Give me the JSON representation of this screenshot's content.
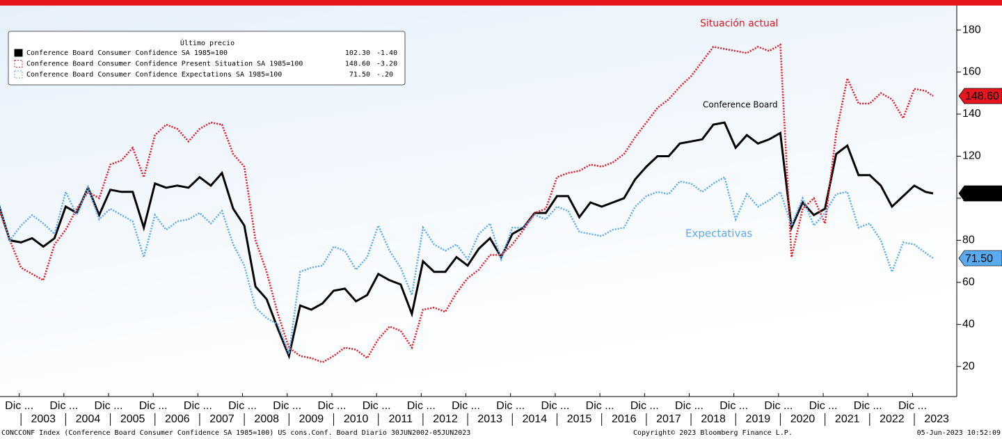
{
  "chart_data": {
    "type": "line",
    "annotations": [
      "Situación actual",
      "Conference Board",
      "Expectativas"
    ],
    "legend_title": "Último precio",
    "x": [
      2002.5,
      2002.75,
      2003,
      2003.25,
      2003.5,
      2003.75,
      2004,
      2004.25,
      2004.5,
      2004.75,
      2005,
      2005.25,
      2005.5,
      2005.75,
      2006,
      2006.25,
      2006.5,
      2006.75,
      2007,
      2007.25,
      2007.5,
      2007.75,
      2008,
      2008.25,
      2008.5,
      2008.75,
      2009,
      2009.25,
      2009.5,
      2009.75,
      2010,
      2010.25,
      2010.5,
      2010.75,
      2011,
      2011.25,
      2011.5,
      2011.75,
      2012,
      2012.25,
      2012.5,
      2012.75,
      2013,
      2013.25,
      2013.5,
      2013.75,
      2014,
      2014.25,
      2014.5,
      2014.75,
      2015,
      2015.25,
      2015.5,
      2015.75,
      2016,
      2016.25,
      2016.5,
      2016.75,
      2017,
      2017.25,
      2017.5,
      2017.75,
      2018,
      2018.25,
      2018.5,
      2018.75,
      2019,
      2019.25,
      2019.5,
      2019.75,
      2020,
      2020.25,
      2020.5,
      2020.75,
      2021,
      2021.25,
      2021.5,
      2021.75,
      2022,
      2022.25,
      2022.5,
      2022.75,
      2023,
      2023.25,
      2023.42
    ],
    "series": [
      {
        "name": "Conference Board Consumer Confidence SA 1985=100",
        "last": "102.30",
        "change": "-1.40",
        "color": "#000000",
        "style": "solid",
        "values": [
          97,
          80,
          79,
          81,
          77,
          81,
          96,
          93,
          105,
          92,
          104,
          103,
          103,
          86,
          107,
          105,
          106,
          105,
          110,
          106,
          112,
          95,
          87,
          58,
          52,
          38,
          25,
          49,
          47,
          50,
          56,
          57,
          51,
          54,
          64,
          61,
          59,
          45,
          70,
          65,
          65,
          72,
          68,
          76,
          81,
          72,
          83,
          86,
          93,
          93,
          101,
          101,
          91,
          98,
          96,
          98,
          100,
          109,
          115,
          120,
          120,
          126,
          127,
          128,
          135,
          136,
          124,
          130,
          126,
          128,
          131,
          86,
          98,
          92,
          95,
          121,
          125,
          111,
          111,
          106,
          96,
          101,
          106,
          103,
          102.3
        ]
      },
      {
        "name": "Conference Board Consumer Confidence Present Situation SA 1985=100",
        "last": "148.60",
        "change": "-3.20",
        "color": "#e8141e",
        "style": "dotted",
        "values": [
          95,
          80,
          67,
          64,
          61,
          78,
          85,
          95,
          103,
          100,
          116,
          118,
          124,
          110,
          130,
          135,
          133,
          127,
          133,
          136,
          135,
          121,
          115,
          80,
          65,
          45,
          29,
          25,
          24,
          22,
          25,
          29,
          28,
          24,
          33,
          39,
          37,
          29,
          47,
          48,
          46,
          55,
          62,
          66,
          73,
          73,
          78,
          85,
          93,
          95,
          110,
          112,
          113,
          116,
          115,
          117,
          121,
          129,
          136,
          143,
          147,
          153,
          158,
          165,
          172,
          171,
          170,
          169,
          172,
          170,
          173,
          72,
          95,
          100,
          88,
          131,
          157,
          145,
          145,
          150,
          147,
          138,
          152,
          151,
          148.6
        ]
      },
      {
        "name": "Conference Board Consumer Confidence Expectations SA 1985=100",
        "last": "71.50",
        "change": "-.20",
        "color": "#5aaaf0",
        "style": "dotted",
        "values": [
          98,
          80,
          87,
          92,
          88,
          83,
          103,
          92,
          105,
          90,
          95,
          92,
          89,
          72,
          92,
          85,
          89,
          90,
          93,
          88,
          94,
          78,
          68,
          48,
          43,
          40,
          26,
          65,
          67,
          68,
          77,
          75,
          66,
          72,
          87,
          75,
          67,
          54,
          86,
          78,
          75,
          78,
          71,
          83,
          88,
          71,
          86,
          86,
          92,
          90,
          96,
          94,
          84,
          83,
          82,
          85,
          86,
          96,
          101,
          103,
          102,
          108,
          107,
          103,
          107,
          110,
          90,
          102,
          96,
          99,
          103,
          87,
          100,
          87,
          93,
          102,
          103,
          86,
          88,
          80,
          65,
          79,
          78,
          74,
          71.5
        ]
      }
    ],
    "xlim": [
      2002.53,
      2023.95
    ],
    "xticks": [
      {
        "value": 2003.5,
        "label": "2003"
      },
      {
        "value": 2004.5,
        "label": "2004"
      },
      {
        "value": 2005.5,
        "label": "2005"
      },
      {
        "value": 2006.5,
        "label": "2006"
      },
      {
        "value": 2007.5,
        "label": "2007"
      },
      {
        "value": 2008.5,
        "label": "2008"
      },
      {
        "value": 2009.5,
        "label": "2009"
      },
      {
        "value": 2010.5,
        "label": "2010"
      },
      {
        "value": 2011.5,
        "label": "2011"
      },
      {
        "value": 2012.5,
        "label": "2012"
      },
      {
        "value": 2013.5,
        "label": "2013"
      },
      {
        "value": 2014.5,
        "label": "2014"
      },
      {
        "value": 2015.5,
        "label": "2015"
      },
      {
        "value": 2016.5,
        "label": "2016"
      },
      {
        "value": 2017.5,
        "label": "2017"
      },
      {
        "value": 2018.5,
        "label": "2018"
      },
      {
        "value": 2019.5,
        "label": "2019"
      },
      {
        "value": 2020.5,
        "label": "2020"
      },
      {
        "value": 2021.5,
        "label": "2021"
      },
      {
        "value": 2022.5,
        "label": "2022"
      },
      {
        "value": 2023.5,
        "label": "2023"
      }
    ],
    "xminorticks": [
      {
        "value": 2002.96,
        "label": "Dic ..."
      },
      {
        "value": 2003.96,
        "label": "Dic ..."
      },
      {
        "value": 2004.96,
        "label": "Dic ..."
      },
      {
        "value": 2005.96,
        "label": "Dic ..."
      },
      {
        "value": 2006.96,
        "label": "Dic ..."
      },
      {
        "value": 2007.96,
        "label": "Dic ..."
      },
      {
        "value": 2008.96,
        "label": "Dic ..."
      },
      {
        "value": 2009.96,
        "label": "Dic ..."
      },
      {
        "value": 2010.96,
        "label": "Dic ..."
      },
      {
        "value": 2011.96,
        "label": "Dic ..."
      },
      {
        "value": 2012.96,
        "label": "Dic ..."
      },
      {
        "value": 2013.96,
        "label": "Dic ..."
      },
      {
        "value": 2014.96,
        "label": "Dic ..."
      },
      {
        "value": 2015.96,
        "label": "Dic ..."
      },
      {
        "value": 2016.96,
        "label": "Dic ..."
      },
      {
        "value": 2017.96,
        "label": "Dic ..."
      },
      {
        "value": 2018.96,
        "label": "Dic ..."
      },
      {
        "value": 2019.96,
        "label": "Dic ..."
      },
      {
        "value": 2020.96,
        "label": "Dic ..."
      },
      {
        "value": 2021.96,
        "label": "Dic ..."
      },
      {
        "value": 2022.96,
        "label": "Dic ..."
      }
    ],
    "ylim": [
      5.7,
      191.6
    ],
    "yticks": [
      20,
      40,
      60,
      80,
      100,
      120,
      140,
      160,
      180
    ],
    "footer": [
      "CONCCONF Index (Conference Board Consumer Confidence SA 1985=100) US cons.Conf. Board  Diario 30JUN2002-05JUN2023",
      "Copyright© 2023 Bloomberg Finance L.P.",
      "05-Jun-2023 10:52:09"
    ]
  }
}
